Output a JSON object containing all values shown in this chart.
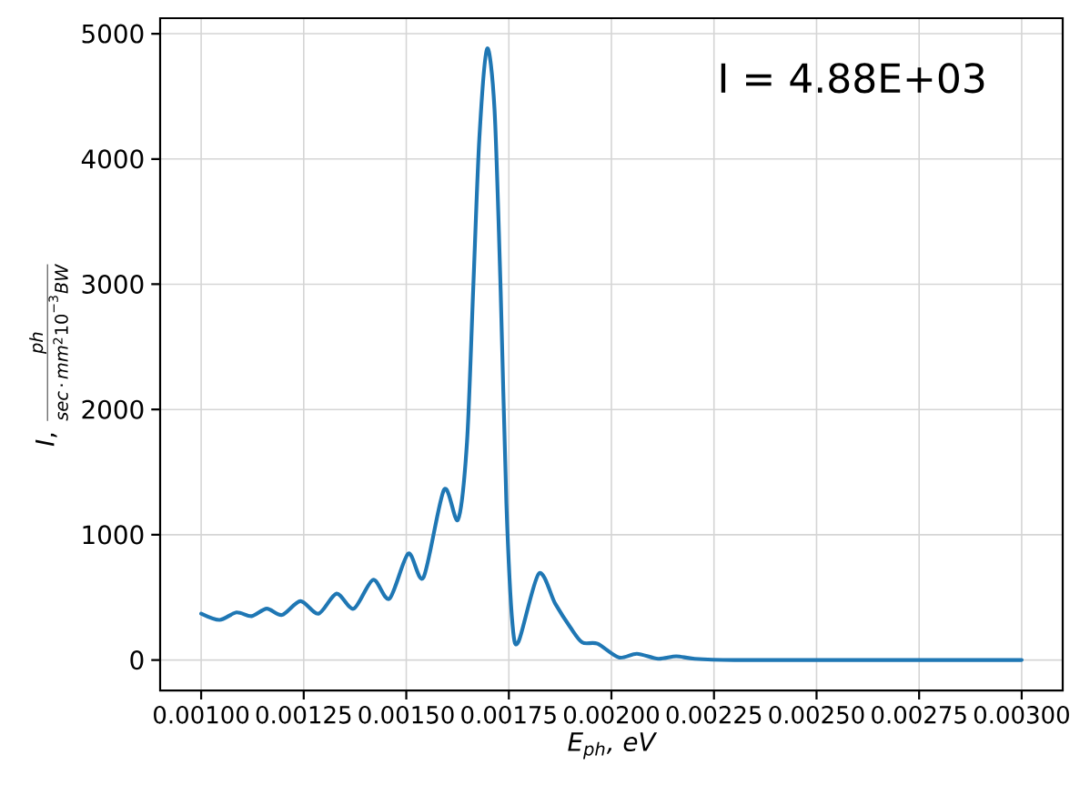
{
  "chart_data": {
    "type": "line",
    "xlabel": "E$_{ph}$, eV",
    "ylabel": "\\mathit{I}\\mbox{,}\\ \\frac{\\mathit{ph}}{\\mathit{sec}\\,\\mathrm{·}\\,\\mathit{mm}^{\\mathrm{2}}\\mathrm{10}^{\\mathrm{−3}}\\mathit{BW}}",
    "annotations": [
      "I = 4.88E+03"
    ],
    "x": [
      0.001,
      0.001045,
      0.001086,
      0.001123,
      0.00116,
      0.001197,
      0.001242,
      0.001286,
      0.00133,
      0.001372,
      0.001419,
      0.001459,
      0.001505,
      0.001542,
      0.001592,
      0.001626,
      0.001648,
      0.001663,
      0.001678,
      0.001697,
      0.001715,
      0.00173,
      0.001744,
      0.001759,
      0.001774,
      0.001823,
      0.001863,
      0.0019,
      0.001929,
      0.001966,
      0.002018,
      0.002062,
      0.002114,
      0.002158,
      0.002203,
      0.0023,
      0.0025,
      0.0027,
      0.003
    ],
    "values": [
      370,
      320,
      380,
      350,
      410,
      360,
      470,
      370,
      530,
      410,
      640,
      490,
      850,
      660,
      1360,
      1120,
      1740,
      2950,
      4160,
      4880,
      4400,
      2950,
      1250,
      280,
      150,
      690,
      450,
      260,
      140,
      130,
      20,
      50,
      10,
      30,
      10,
      0,
      0,
      0,
      0
    ],
    "color": "#1f77b4",
    "xlim": [
      0.0009,
      0.0031
    ],
    "xticks": [
      {
        "value": 0.001,
        "label": "0.00100"
      },
      {
        "value": 0.00125,
        "label": "0.00125"
      },
      {
        "value": 0.0015,
        "label": "0.00150"
      },
      {
        "value": 0.00175,
        "label": "0.00175"
      },
      {
        "value": 0.002,
        "label": "0.00200"
      },
      {
        "value": 0.00225,
        "label": "0.00225"
      },
      {
        "value": 0.0025,
        "label": "0.00250"
      },
      {
        "value": 0.00275,
        "label": "0.00275"
      },
      {
        "value": 0.003,
        "label": "0.00300"
      }
    ],
    "ylim": [
      -244,
      5124
    ],
    "yticks": [
      0,
      1000,
      2000,
      3000,
      4000,
      5000
    ],
    "grid": true
  }
}
